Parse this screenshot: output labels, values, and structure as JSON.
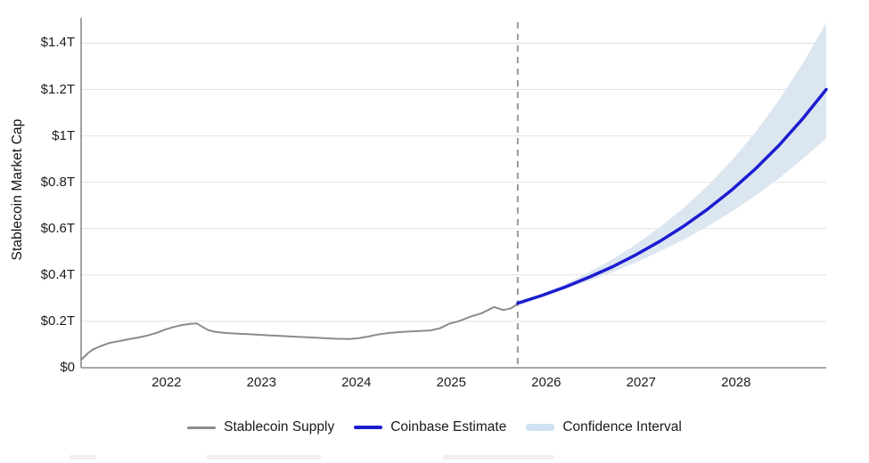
{
  "figure": {
    "y_axis_title": "Stablecoin Market Cap",
    "y_ticks": [
      {
        "value": 0.0,
        "label": "$0"
      },
      {
        "value": 0.2,
        "label": "$0.2T"
      },
      {
        "value": 0.4,
        "label": "$0.4T"
      },
      {
        "value": 0.6,
        "label": "$0.6T"
      },
      {
        "value": 0.8,
        "label": "$0.8T"
      },
      {
        "value": 1.0,
        "label": "$1T"
      },
      {
        "value": 1.2,
        "label": "$1.2T"
      },
      {
        "value": 1.4,
        "label": "$1.4T"
      }
    ],
    "x_ticks": [
      {
        "value": 2022,
        "label": "2022"
      },
      {
        "value": 2023,
        "label": "2023"
      },
      {
        "value": 2024,
        "label": "2024"
      },
      {
        "value": 2025,
        "label": "2025"
      },
      {
        "value": 2026,
        "label": "2026"
      },
      {
        "value": 2027,
        "label": "2027"
      },
      {
        "value": 2028,
        "label": "2028"
      }
    ],
    "legend": [
      {
        "label": "Stablecoin Supply",
        "swatch": "line-gray",
        "color": "#8b8b8b"
      },
      {
        "label": "Coinbase Estimate",
        "swatch": "line-blue",
        "color": "#1c1cd0"
      },
      {
        "label": "Confidence Interval",
        "swatch": "band",
        "color": "#cfe1f2"
      }
    ]
  },
  "colors": {
    "history_line": "#8b8b8b",
    "forecast_line": "#1c1cd0",
    "confidence_band": "#dce6f1",
    "gridline": "#e2e2e2",
    "axis": "#8a8a8a",
    "divider": "#9a9a9a",
    "text": "#1c1c1c"
  },
  "chart_data": {
    "type": "line",
    "title": "",
    "xlabel": "",
    "ylabel": "Stablecoin Market Cap",
    "units": "USD trillions",
    "xlim": [
      2021.1,
      2028.95
    ],
    "ylim": [
      0,
      1.545
    ],
    "grid": "horizontal",
    "legend_position": "bottom-center",
    "forecast_divider_x": 2025.7,
    "series": [
      {
        "name": "Stablecoin Supply",
        "type": "line",
        "color": "#8b8b8b",
        "points": [
          [
            2021.1,
            0.034
          ],
          [
            2021.17,
            0.062
          ],
          [
            2021.22,
            0.078
          ],
          [
            2021.3,
            0.092
          ],
          [
            2021.4,
            0.107
          ],
          [
            2021.5,
            0.115
          ],
          [
            2021.6,
            0.123
          ],
          [
            2021.7,
            0.13
          ],
          [
            2021.8,
            0.139
          ],
          [
            2021.9,
            0.151
          ],
          [
            2021.98,
            0.164
          ],
          [
            2022.06,
            0.174
          ],
          [
            2022.15,
            0.183
          ],
          [
            2022.25,
            0.189
          ],
          [
            2022.32,
            0.191
          ],
          [
            2022.38,
            0.176
          ],
          [
            2022.44,
            0.162
          ],
          [
            2022.52,
            0.154
          ],
          [
            2022.62,
            0.15
          ],
          [
            2022.75,
            0.147
          ],
          [
            2022.9,
            0.144
          ],
          [
            2023.05,
            0.14
          ],
          [
            2023.2,
            0.137
          ],
          [
            2023.35,
            0.134
          ],
          [
            2023.5,
            0.131
          ],
          [
            2023.65,
            0.128
          ],
          [
            2023.8,
            0.125
          ],
          [
            2023.92,
            0.124
          ],
          [
            2024.02,
            0.127
          ],
          [
            2024.12,
            0.134
          ],
          [
            2024.22,
            0.143
          ],
          [
            2024.35,
            0.15
          ],
          [
            2024.5,
            0.155
          ],
          [
            2024.65,
            0.158
          ],
          [
            2024.78,
            0.161
          ],
          [
            2024.88,
            0.17
          ],
          [
            2024.98,
            0.19
          ],
          [
            2025.08,
            0.201
          ],
          [
            2025.2,
            0.22
          ],
          [
            2025.32,
            0.235
          ],
          [
            2025.45,
            0.262
          ],
          [
            2025.55,
            0.249
          ],
          [
            2025.63,
            0.256
          ],
          [
            2025.7,
            0.276
          ]
        ]
      },
      {
        "name": "Coinbase Estimate",
        "type": "line",
        "color": "#1c1cd0",
        "points": [
          [
            2025.7,
            0.278
          ],
          [
            2025.95,
            0.311
          ],
          [
            2026.2,
            0.348
          ],
          [
            2026.45,
            0.39
          ],
          [
            2026.7,
            0.436
          ],
          [
            2026.95,
            0.488
          ],
          [
            2027.2,
            0.546
          ],
          [
            2027.45,
            0.611
          ],
          [
            2027.7,
            0.684
          ],
          [
            2027.95,
            0.765
          ],
          [
            2028.2,
            0.856
          ],
          [
            2028.45,
            0.958
          ],
          [
            2028.7,
            1.073
          ],
          [
            2028.95,
            1.2
          ]
        ]
      },
      {
        "name": "Confidence Interval",
        "type": "band",
        "color": "#dce6f1",
        "upper": [
          [
            2025.7,
            0.278
          ],
          [
            2025.95,
            0.317
          ],
          [
            2026.2,
            0.361
          ],
          [
            2026.45,
            0.412
          ],
          [
            2026.7,
            0.468
          ],
          [
            2026.95,
            0.533
          ],
          [
            2027.2,
            0.607
          ],
          [
            2027.45,
            0.69
          ],
          [
            2027.7,
            0.785
          ],
          [
            2027.95,
            0.892
          ],
          [
            2028.2,
            1.014
          ],
          [
            2028.45,
            1.153
          ],
          [
            2028.7,
            1.311
          ],
          [
            2028.95,
            1.488
          ]
        ],
        "lower": [
          [
            2025.7,
            0.278
          ],
          [
            2025.95,
            0.307
          ],
          [
            2026.2,
            0.339
          ],
          [
            2026.45,
            0.374
          ],
          [
            2026.7,
            0.413
          ],
          [
            2026.95,
            0.455
          ],
          [
            2027.2,
            0.502
          ],
          [
            2027.45,
            0.553
          ],
          [
            2027.7,
            0.61
          ],
          [
            2027.95,
            0.672
          ],
          [
            2028.2,
            0.741
          ],
          [
            2028.45,
            0.816
          ],
          [
            2028.7,
            0.9
          ],
          [
            2028.95,
            0.99
          ]
        ]
      }
    ]
  }
}
